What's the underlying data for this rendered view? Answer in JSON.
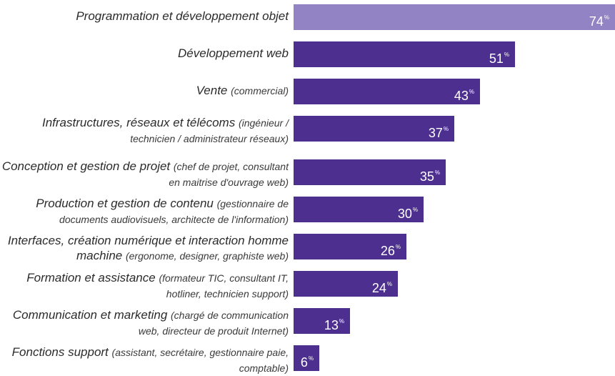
{
  "colors": {
    "highlight": "#9283c4",
    "bar": "#4d2f8f",
    "text": "#2b2b2b"
  },
  "chart_data": {
    "type": "bar",
    "orientation": "horizontal",
    "unit": "%",
    "xlim": [
      0,
      74
    ],
    "grid": false,
    "categories": [
      {
        "main": "Programmation et développement objet",
        "sub": "",
        "value": 74,
        "highlight": true
      },
      {
        "main": "Développement web",
        "sub": "",
        "value": 51,
        "highlight": false
      },
      {
        "main": "Vente",
        "sub": "(commercial)",
        "value": 43,
        "highlight": false
      },
      {
        "main": "Infrastructures, réseaux et télécoms",
        "sub": "(ingénieur / technicien / administrateur réseaux)",
        "value": 37,
        "highlight": false
      },
      {
        "main": "Conception et gestion de projet",
        "sub": "(chef de projet, consultant en maitrise d'ouvrage web)",
        "value": 35,
        "highlight": false
      },
      {
        "main": "Production et gestion de contenu",
        "sub": "(gestionnaire de documents audiovisuels, architecte de l'information)",
        "value": 30,
        "highlight": false
      },
      {
        "main": "Interfaces,  création numérique et interaction homme machine",
        "sub": "(ergonome, designer, graphiste web)",
        "value": 26,
        "highlight": false
      },
      {
        "main": "Formation et assistance",
        "sub": "(formateur TIC, consultant IT, hotliner, technicien support)",
        "value": 24,
        "highlight": false
      },
      {
        "main": "Communication et marketing",
        "sub": "(chargé de communication web, directeur de produit Internet)",
        "value": 13,
        "highlight": false
      },
      {
        "main": "Fonctions support",
        "sub": "(assistant, secrétaire, gestionnaire paie, comptable)",
        "value": 6,
        "highlight": false
      }
    ]
  }
}
